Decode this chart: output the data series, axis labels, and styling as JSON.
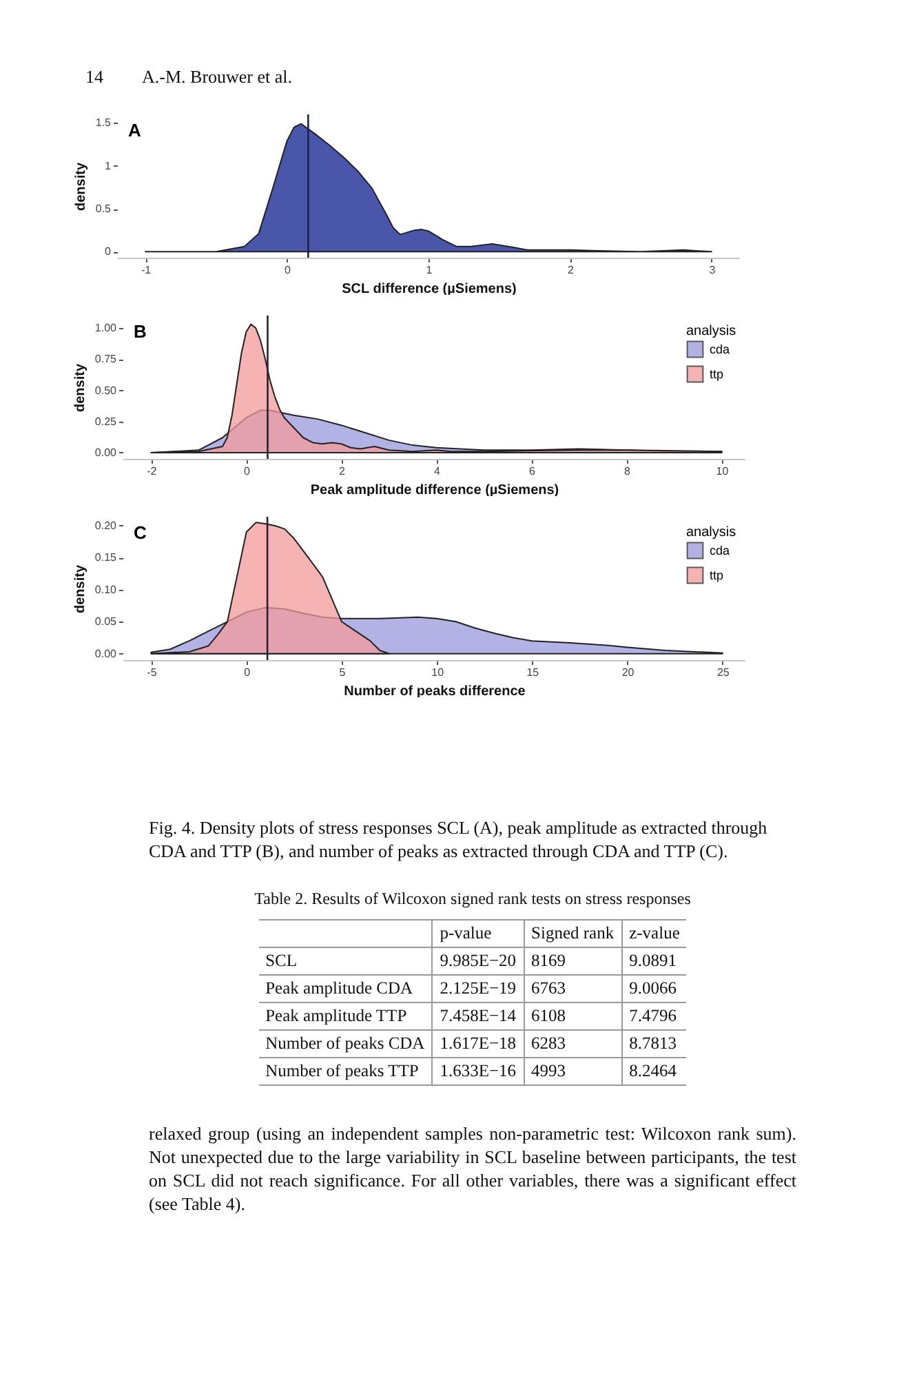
{
  "chart_data": [
    {
      "type": "area",
      "xlabel": "SCL difference (µSiemens)",
      "ylabel": "density",
      "annotations": [
        "A",
        "14",
        "A.-M. Brouwer et al."
      ],
      "xlim": [
        -1.2,
        3.2
      ],
      "xticks": [
        -1,
        0,
        1,
        2,
        3
      ],
      "ylim": [
        -0.07,
        1.6
      ],
      "yticks": [
        0.0,
        0.5,
        1.0,
        1.5
      ],
      "grid": false,
      "legend": false,
      "ref_lines": [
        {
          "axis": "x",
          "value": 0.15,
          "color": "#1c2050"
        }
      ],
      "series": [
        {
          "color": "#4a56aa",
          "x": [
            -1,
            -0.5,
            -0.3,
            -0.2,
            -0.1,
            0,
            0.05,
            0.1,
            0.2,
            0.3,
            0.4,
            0.5,
            0.6,
            0.7,
            0.75,
            0.8,
            0.9,
            0.95,
            1.0,
            1.1,
            1.2,
            1.3,
            1.45,
            1.6,
            1.7,
            2.0,
            2.2,
            2.5,
            2.8,
            3.0
          ],
          "values": [
            0,
            0,
            0.06,
            0.21,
            0.74,
            1.29,
            1.45,
            1.49,
            1.37,
            1.24,
            1.1,
            0.94,
            0.74,
            0.44,
            0.28,
            0.2,
            0.25,
            0.26,
            0.24,
            0.14,
            0.06,
            0.06,
            0.09,
            0.05,
            0.02,
            0.02,
            0.01,
            0,
            0.02,
            0
          ]
        }
      ]
    },
    {
      "type": "area",
      "xlabel": "Peak amplitude difference (µSiemens)",
      "ylabel": "density",
      "legend_title": "analysis",
      "annotations": [
        "B"
      ],
      "xlim": [
        -2.6,
        10.5
      ],
      "xticks": [
        -2,
        0,
        2,
        4,
        6,
        8,
        10
      ],
      "ylim": [
        -0.05,
        1.1
      ],
      "yticks": [
        {
          "value": 0,
          "label": "0.00"
        },
        {
          "value": 0.25,
          "label": "0.25"
        },
        {
          "value": 0.5,
          "label": "0.50"
        },
        {
          "value": 0.75,
          "label": "0.75"
        },
        {
          "value": 1,
          "label": "1.00"
        }
      ],
      "grid": false,
      "legend": "top right",
      "ref_lines": [
        {
          "axis": "x",
          "value": 0.45,
          "color": "#2a2030"
        }
      ],
      "series": [
        {
          "name": "cda",
          "color": "#9a98dc",
          "x": [
            -2,
            -1,
            -0.5,
            0,
            0.3,
            0.5,
            1.0,
            1.5,
            2,
            2.5,
            3,
            3.5,
            4,
            4.5,
            5,
            6,
            7,
            8,
            9,
            10
          ],
          "values": [
            0,
            0.02,
            0.12,
            0.28,
            0.34,
            0.34,
            0.3,
            0.27,
            0.22,
            0.16,
            0.1,
            0.06,
            0.04,
            0.03,
            0.02,
            0.02,
            0.03,
            0.02,
            0.01,
            0.01
          ]
        },
        {
          "name": "ttp",
          "color": "#f39a9a",
          "x": [
            -2,
            -1,
            -0.5,
            -0.4,
            -0.3,
            -0.2,
            -0.1,
            0,
            0.1,
            0.2,
            0.3,
            0.4,
            0.5,
            0.6,
            0.7,
            0.8,
            0.9,
            1.0,
            1.2,
            1.4,
            1.6,
            1.8,
            2.0,
            2.2,
            2.4,
            2.7,
            3.0,
            3.5,
            4.0,
            4.3,
            5,
            7,
            8,
            10
          ],
          "values": [
            0,
            0.01,
            0.05,
            0.12,
            0.3,
            0.55,
            0.8,
            0.97,
            1.03,
            1.0,
            0.9,
            0.75,
            0.58,
            0.45,
            0.35,
            0.28,
            0.24,
            0.2,
            0.12,
            0.08,
            0.07,
            0.08,
            0.07,
            0.04,
            0.03,
            0.05,
            0.02,
            0.01,
            0.02,
            0.01,
            0.01,
            0.02,
            0.02,
            0.01
          ]
        }
      ]
    },
    {
      "type": "area",
      "xlabel": "Number of peaks difference",
      "ylabel": "density",
      "legend_title": "analysis",
      "annotations": [
        "C",
        "Fig. 4. Density plots of stress responses SCL (A), peak amplitude as extracted through CDA and TTP (B), and number of peaks as extracted through CDA and TTP (C).",
        "Table 2. Results of Wilcoxon signed rank tests on stress responses",
        "p-value",
        "Signed rank",
        "z-value",
        "SCL",
        "9.985E−20",
        "8169",
        "9.0891",
        "Peak amplitude CDA",
        "2.125E−19",
        "6763",
        "9.0066",
        "Peak amplitude TTP",
        "7.458E−14",
        "6108",
        "7.4796",
        "Number of peaks CDA",
        "1.617E−18",
        "6283",
        "8.7813",
        "Number of peaks TTP",
        "1.633E−16",
        "4993",
        "8.2464",
        "relaxed group (using an independent samples non-parametric test: Wilcoxon rank sum). Not unexpected due to the large variability in SCL baseline between participants, the test on SCL did not reach significance. For all other variables, there was a significant effect (see Table 4)."
      ],
      "xlim": [
        -6.5,
        26.2
      ],
      "xticks": [
        -5,
        0,
        5,
        10,
        15,
        20,
        25
      ],
      "ylim": [
        -0.01,
        0.214
      ],
      "yticks": [
        {
          "value": 0,
          "label": "0.00"
        },
        {
          "value": 0.05,
          "label": "0.05"
        },
        {
          "value": 0.1,
          "label": "0.10"
        },
        {
          "value": 0.15,
          "label": "0.15"
        },
        {
          "value": 0.2,
          "label": "0.20"
        }
      ],
      "grid": false,
      "legend": "top right",
      "ref_lines": [
        {
          "axis": "x",
          "value": 1.1,
          "color": "#2a2030"
        }
      ],
      "series": [
        {
          "name": "cda",
          "color": "#9a98dc",
          "x": [
            -5,
            -4,
            -3,
            -2,
            -1,
            0,
            1,
            2,
            3,
            4,
            5,
            7,
            9,
            10,
            11,
            12,
            13,
            14,
            15,
            17,
            19,
            20,
            22,
            25
          ],
          "values": [
            0.002,
            0.007,
            0.02,
            0.035,
            0.05,
            0.065,
            0.072,
            0.07,
            0.063,
            0.057,
            0.055,
            0.055,
            0.057,
            0.055,
            0.05,
            0.04,
            0.032,
            0.025,
            0.02,
            0.017,
            0.013,
            0.01,
            0.005,
            0.001
          ]
        },
        {
          "name": "ttp",
          "color": "#f39a9a",
          "x": [
            -5,
            -3,
            -2,
            -1.5,
            -1,
            -0.5,
            0,
            0.5,
            1,
            1.5,
            2,
            2.5,
            3,
            3.5,
            4,
            4.5,
            5,
            5.5,
            6,
            6.5,
            7,
            7.5
          ],
          "values": [
            0,
            0.003,
            0.012,
            0.03,
            0.05,
            0.12,
            0.19,
            0.205,
            0.203,
            0.2,
            0.195,
            0.18,
            0.16,
            0.14,
            0.12,
            0.085,
            0.05,
            0.04,
            0.03,
            0.02,
            0.005,
            0
          ]
        }
      ]
    }
  ]
}
